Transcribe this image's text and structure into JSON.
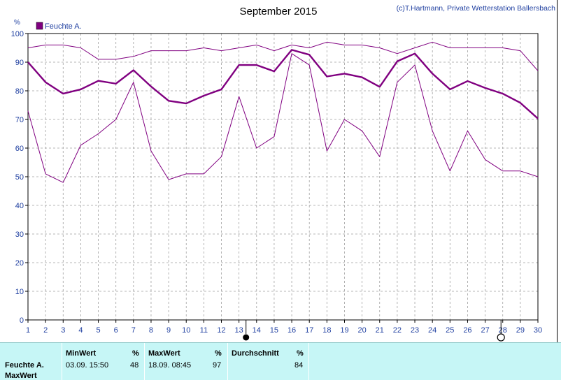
{
  "chart_data": {
    "type": "line",
    "title": "September 2015",
    "credit": "(c)T.Hartmann, Private Wetterstation Ballersbach",
    "ylabel": "%",
    "ylim": [
      0,
      100
    ],
    "yticks": [
      0,
      10,
      20,
      30,
      40,
      50,
      60,
      70,
      80,
      90,
      100
    ],
    "x": [
      1,
      2,
      3,
      4,
      5,
      6,
      7,
      8,
      9,
      10,
      11,
      12,
      13,
      14,
      15,
      16,
      17,
      18,
      19,
      20,
      21,
      22,
      23,
      24,
      25,
      26,
      27,
      28,
      29,
      30
    ],
    "grid": true,
    "legend": {
      "position": "top-left",
      "entries": [
        "Feuchte A."
      ]
    },
    "moon_phases": [
      {
        "day": 13.4,
        "phase": "new-moon"
      },
      {
        "day": 27.9,
        "phase": "full-moon"
      }
    ],
    "series": [
      {
        "name": "Feuchte A.",
        "role": "mean",
        "values": [
          90,
          83,
          79,
          80.5,
          83.5,
          82.5,
          87.2,
          81.5,
          76.5,
          75.6,
          78.3,
          80.5,
          89,
          89,
          86.8,
          94.3,
          92.6,
          85,
          86,
          84.7,
          81.4,
          90.3,
          93,
          86,
          80.5,
          83.4,
          81,
          79,
          75.8,
          70.3
        ]
      },
      {
        "role": "max",
        "values": [
          95,
          96,
          96,
          95,
          91,
          91,
          92,
          94,
          94,
          94,
          95,
          94,
          95,
          96,
          94,
          96,
          95,
          97,
          96,
          96,
          95,
          93,
          95,
          97,
          95,
          95,
          95,
          95,
          94,
          87
        ]
      },
      {
        "role": "min",
        "values": [
          73,
          51,
          48,
          61,
          65,
          70,
          83,
          59,
          49,
          51,
          51,
          57,
          78,
          60,
          64,
          93,
          89,
          59,
          70,
          66,
          57,
          83,
          89,
          66,
          52,
          66,
          56,
          52,
          52,
          50
        ]
      }
    ],
    "colors": {
      "line": "#800080",
      "legend_swatch": "#800080",
      "grid": "#a0a0a0",
      "stats_bg": "#c6f6f6"
    }
  },
  "stats": {
    "row_label": "Feuchte A.",
    "row_label2": "MaxWert",
    "min_header": "MinWert",
    "min_unit": "%",
    "min_time": "03.09.  15:50",
    "min_value": "48",
    "max_header": "MaxWert",
    "max_unit": "%",
    "max_time": "18.09.  08:45",
    "max_value": "97",
    "avg_header": "Durchschnitt",
    "avg_unit": "%",
    "avg_value": "84"
  }
}
